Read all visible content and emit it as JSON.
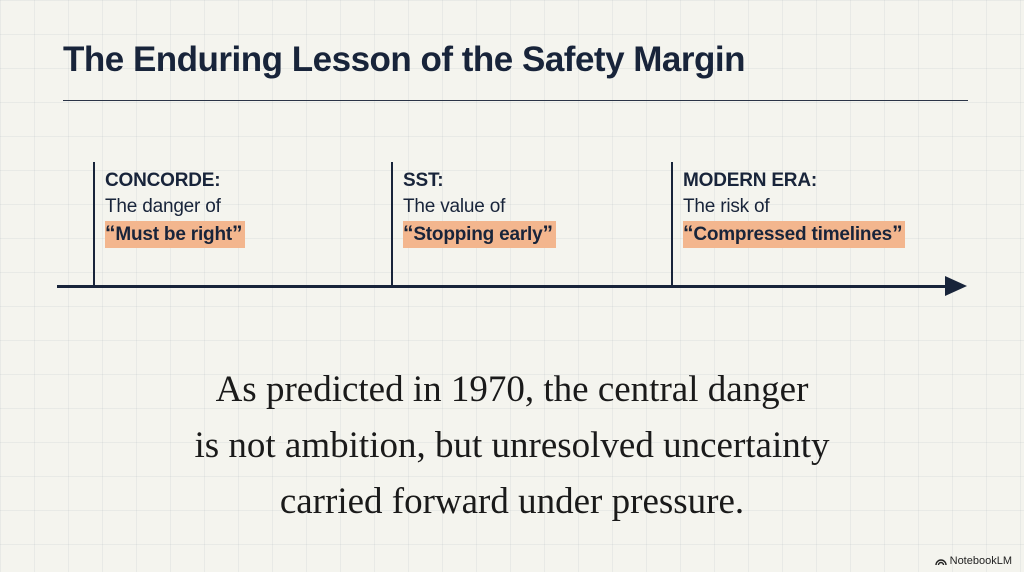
{
  "title": "The Enduring Lesson of the Safety Margin",
  "milestones": [
    {
      "label": "CONCORDE:",
      "description": "The danger of",
      "quote_open": "“",
      "highlight": "Must be right",
      "quote_close": "”"
    },
    {
      "label": "SST:",
      "description": "The value of",
      "quote_open": "“",
      "highlight": "Stopping early",
      "quote_close": "”"
    },
    {
      "label": "MODERN ERA:",
      "description": "The risk of",
      "quote_open": "“",
      "highlight": "Compressed timelines",
      "quote_close": "”"
    }
  ],
  "conclusion": {
    "line1": "As predicted in 1970, the central danger",
    "line2": "is not ambition, but unresolved uncertainty",
    "line3": "carried forward under pressure."
  },
  "brand": {
    "name": "NotebookLM",
    "icon": "notebooklm-logo-icon"
  },
  "colors": {
    "background": "#f4f4ee",
    "ink": "#18243a",
    "highlight": "#f3b68e"
  }
}
